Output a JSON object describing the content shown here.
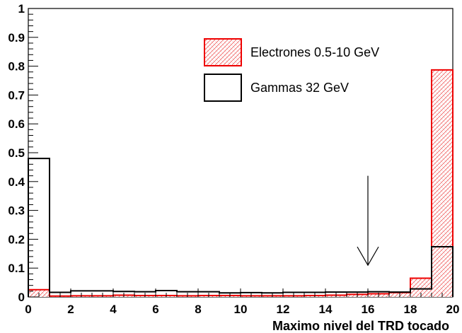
{
  "chart_data": {
    "type": "histogram",
    "xlabel": "Maximo nivel del TRD tocado",
    "ylabel": "",
    "xlim": [
      0,
      20
    ],
    "ylim": [
      0,
      1
    ],
    "x_ticks": [
      "0",
      "2",
      "4",
      "6",
      "8",
      "10",
      "12",
      "14",
      "16",
      "18",
      "20"
    ],
    "y_ticks": [
      "0",
      "0.1",
      "0.2",
      "0.3",
      "0.4",
      "0.5",
      "0.6",
      "0.7",
      "0.8",
      "0.9",
      "1"
    ],
    "bin_edges": [
      0,
      1,
      2,
      3,
      4,
      5,
      6,
      7,
      8,
      9,
      10,
      11,
      12,
      13,
      14,
      15,
      16,
      17,
      18,
      19,
      20
    ],
    "series": [
      {
        "name": "Electrones 0.5-10 GeV",
        "color": "#ee0000",
        "fill": "hatched",
        "values": [
          0.025,
          0.003,
          0.004,
          0.004,
          0.006,
          0.005,
          0.005,
          0.004,
          0.005,
          0.005,
          0.004,
          0.004,
          0.004,
          0.005,
          0.006,
          0.009,
          0.011,
          0.015,
          0.065,
          0.787
        ]
      },
      {
        "name": "Gammas 32 GeV",
        "color": "#000000",
        "fill": "none",
        "values": [
          0.48,
          0.016,
          0.021,
          0.021,
          0.019,
          0.018,
          0.022,
          0.018,
          0.018,
          0.014,
          0.015,
          0.014,
          0.016,
          0.016,
          0.017,
          0.017,
          0.018,
          0.017,
          0.028,
          0.174
        ]
      }
    ],
    "annotation": {
      "type": "arrow",
      "x": 16,
      "y_from": 0.42,
      "y_to": 0.11
    },
    "legend_position": "top-right"
  }
}
